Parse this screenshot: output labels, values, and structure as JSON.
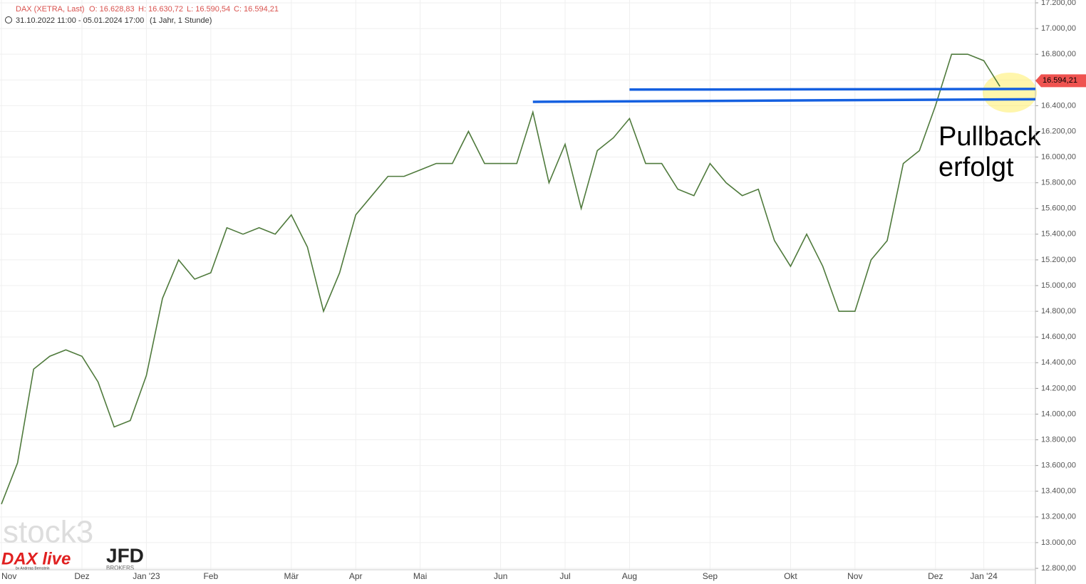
{
  "chart_data": {
    "type": "line",
    "header": {
      "instrument": "DAX (XETRA, Last)",
      "open": "O: 16.628,83",
      "high": "H: 16.630,72",
      "low": "L: 16.590,54",
      "close": "C: 16.594,21",
      "range": "31.10.2022 11:00 - 05.01.2024 17:00",
      "interval": "(1 Jahr, 1 Stunde)"
    },
    "categories": [
      "Nov",
      null,
      null,
      null,
      null,
      "Dez",
      null,
      null,
      null,
      "Jan '23",
      null,
      null,
      null,
      "Feb",
      null,
      null,
      null,
      null,
      "Mär",
      null,
      null,
      null,
      "Apr",
      null,
      null,
      null,
      "Mai",
      null,
      null,
      null,
      null,
      "Jun",
      null,
      null,
      null,
      "Jul",
      null,
      null,
      null,
      "Aug",
      null,
      null,
      null,
      null,
      "Sep",
      null,
      null,
      null,
      null,
      "Okt",
      null,
      null,
      null,
      "Nov",
      null,
      null,
      null,
      null,
      "Dez",
      null,
      null,
      "Jan '24",
      null
    ],
    "series": [
      {
        "name": "DAX",
        "color": "#4f7a3c",
        "values": [
          13300,
          13620,
          14350,
          14450,
          14500,
          14450,
          14250,
          13900,
          13950,
          14300,
          14900,
          15200,
          15050,
          15100,
          15450,
          15400,
          15450,
          15400,
          15550,
          15300,
          14800,
          15100,
          15550,
          15700,
          15850,
          15850,
          15900,
          15950,
          15950,
          16200,
          15950,
          15950,
          15950,
          16350,
          15800,
          16100,
          15600,
          16050,
          16150,
          16300,
          15950,
          15950,
          15750,
          15700,
          15950,
          15800,
          15700,
          15750,
          15350,
          15150,
          15400,
          15150,
          14800,
          14800,
          15200,
          15350,
          15950,
          16050,
          16400,
          16800,
          16800,
          16750,
          16550
        ]
      }
    ],
    "support_lines": [
      {
        "color": "#1560e0",
        "x_start": 33,
        "values": [
          16430,
          16450
        ]
      },
      {
        "color": "#1560e0",
        "x_start": 39,
        "values": [
          16525,
          16530
        ]
      }
    ],
    "last_price": {
      "value": 16594.21,
      "label": "16.594,21"
    },
    "annotation": [
      "Pullback",
      "erfolgt"
    ],
    "branding": {
      "stock": "stock3",
      "show": "DAX live",
      "byline": "by Andreas Bernstein",
      "broker": "JFD",
      "broker_sub": "BROKERS"
    },
    "ylim": [
      12800,
      17200
    ],
    "yticks": [
      {
        "value": 12800,
        "label": "12.800,00"
      },
      {
        "value": 13000,
        "label": "13.000,00"
      },
      {
        "value": 13200,
        "label": "13.200,00"
      },
      {
        "value": 13400,
        "label": "13.400,00"
      },
      {
        "value": 13600,
        "label": "13.600,00"
      },
      {
        "value": 13800,
        "label": "13.800,00"
      },
      {
        "value": 14000,
        "label": "14.000,00"
      },
      {
        "value": 14200,
        "label": "14.200,00"
      },
      {
        "value": 14400,
        "label": "14.400,00"
      },
      {
        "value": 14600,
        "label": "14.600,00"
      },
      {
        "value": 14800,
        "label": "14.800,00"
      },
      {
        "value": 15000,
        "label": "15.000,00"
      },
      {
        "value": 15200,
        "label": "15.200,00"
      },
      {
        "value": 15400,
        "label": "15.400,00"
      },
      {
        "value": 15600,
        "label": "15.600,00"
      },
      {
        "value": 15800,
        "label": "15.800,00"
      },
      {
        "value": 16000,
        "label": "16.000,00"
      },
      {
        "value": 16200,
        "label": "16.200,00"
      },
      {
        "value": 16400,
        "label": "16.400,00"
      },
      {
        "value": 16600,
        "label": "16.600,00"
      },
      {
        "value": 16800,
        "label": "16.800,00"
      },
      {
        "value": 17000,
        "label": "17.000,00"
      },
      {
        "value": 17200,
        "label": "17.200,00"
      }
    ],
    "grid": true
  }
}
